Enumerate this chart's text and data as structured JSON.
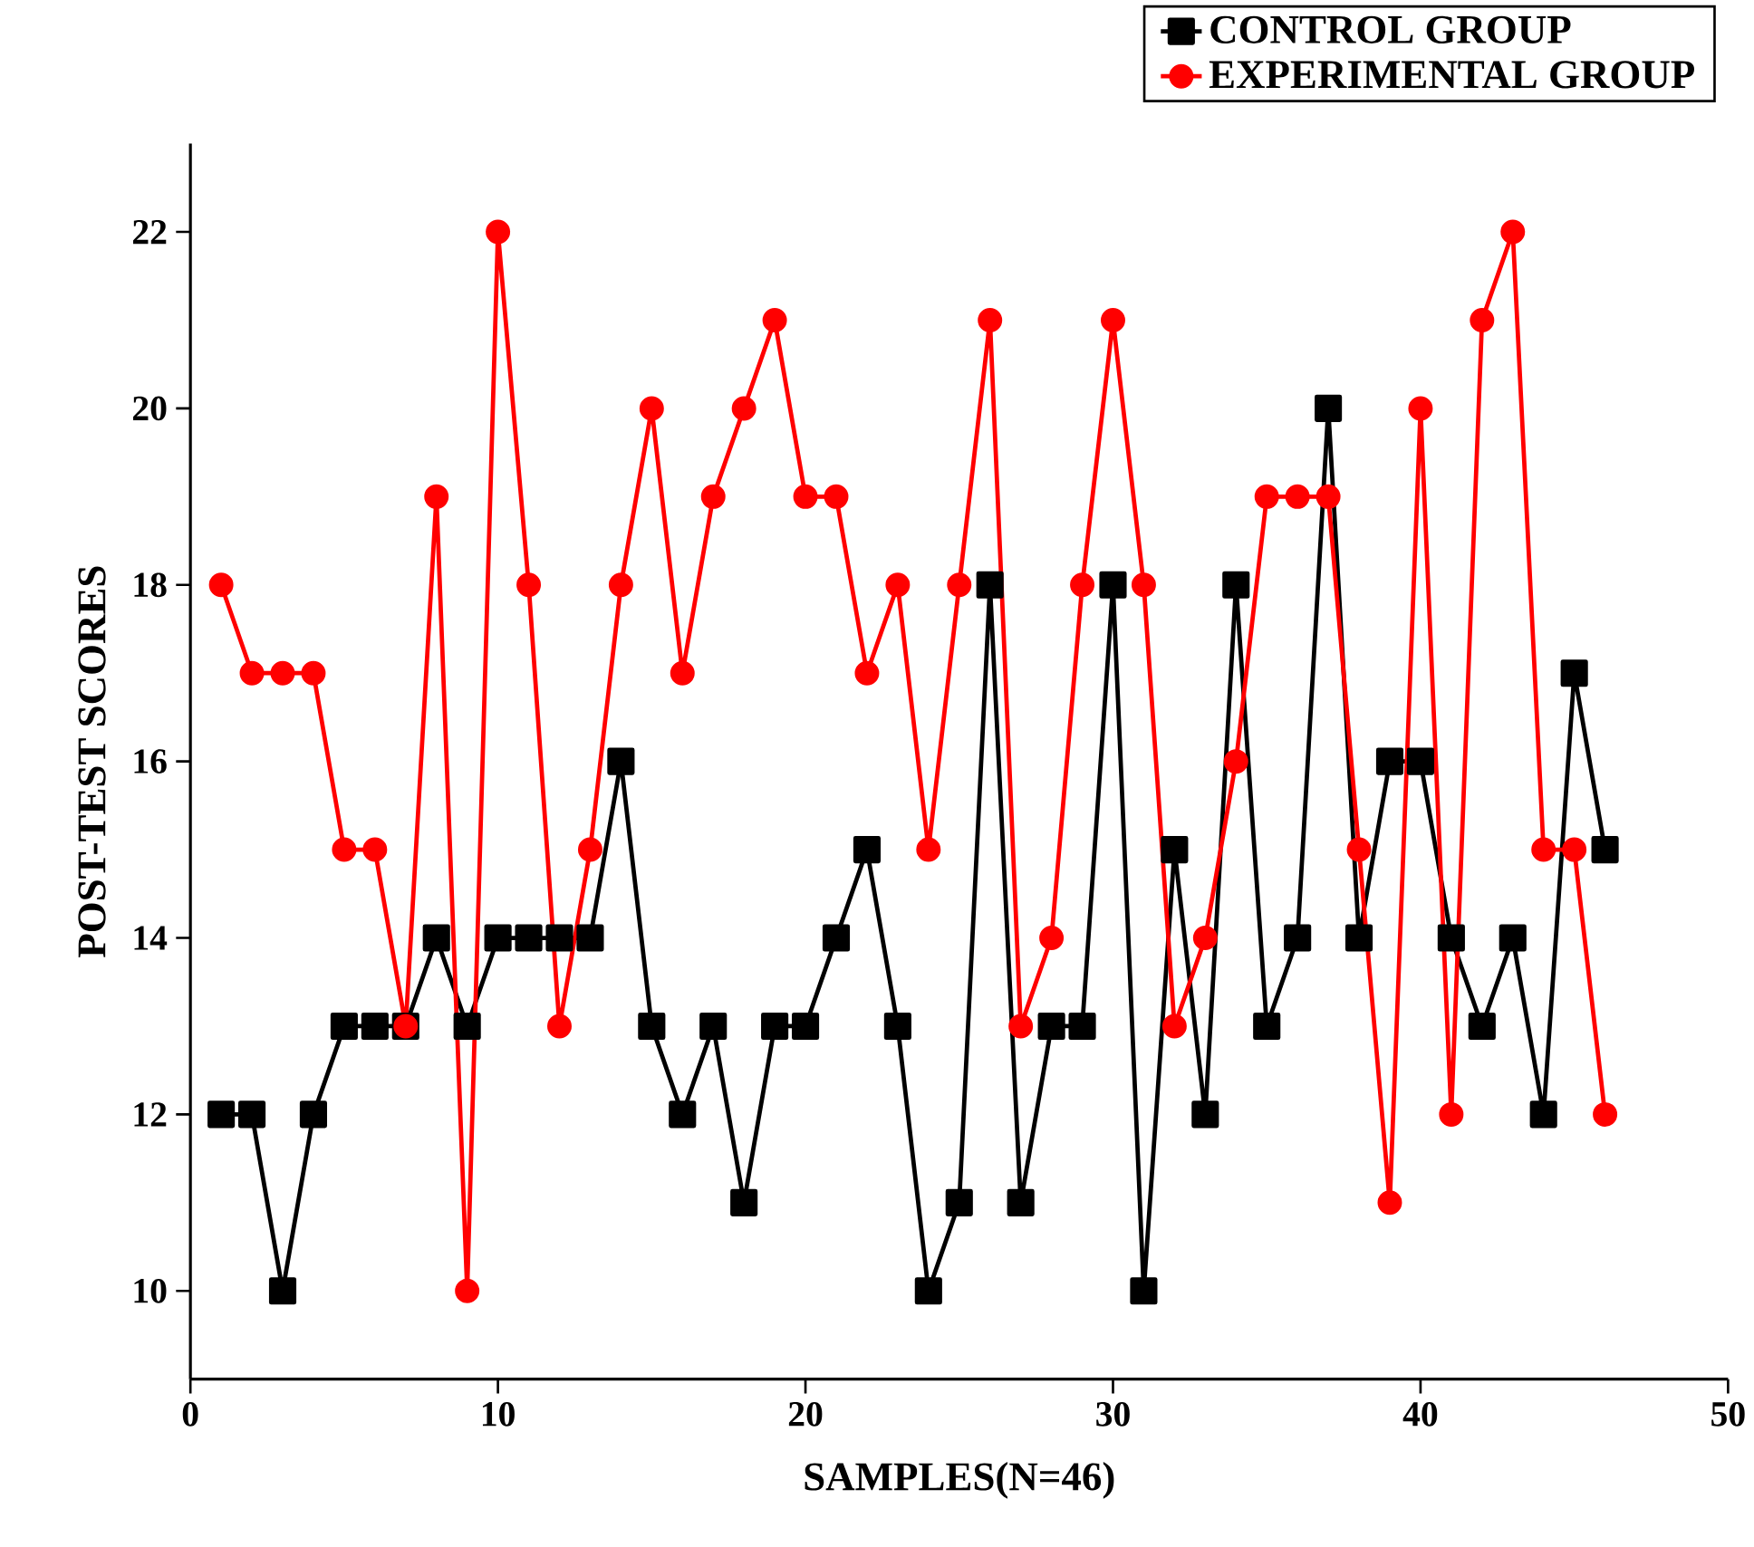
{
  "chart_data": {
    "type": "line",
    "xlabel": "SAMPLES(N=46)",
    "ylabel": "POST-TEST SCORES",
    "x": [
      1,
      2,
      3,
      4,
      5,
      6,
      7,
      8,
      9,
      10,
      11,
      12,
      13,
      14,
      15,
      16,
      17,
      18,
      19,
      20,
      21,
      22,
      23,
      24,
      25,
      26,
      27,
      28,
      29,
      30,
      31,
      32,
      33,
      34,
      35,
      36,
      37,
      38,
      39,
      40,
      41,
      42,
      43,
      44,
      45,
      46
    ],
    "series": [
      {
        "name": "CONTROL GROUP",
        "color": "#000000",
        "marker": "square",
        "values": [
          12,
          12,
          10,
          12,
          13,
          13,
          13,
          14,
          13,
          14,
          14,
          14,
          14,
          16,
          13,
          12,
          13,
          11,
          13,
          13,
          14,
          15,
          13,
          10,
          11,
          18,
          11,
          13,
          13,
          18,
          10,
          15,
          12,
          18,
          13,
          14,
          20,
          14,
          16,
          16,
          14,
          13,
          14,
          12,
          17,
          15
        ]
      },
      {
        "name": "EXPERIMENTAL GROUP",
        "color": "#ff0000",
        "marker": "circle",
        "values": [
          18,
          17,
          17,
          17,
          15,
          15,
          13,
          19,
          10,
          22,
          18,
          13,
          15,
          18,
          20,
          17,
          19,
          20,
          21,
          19,
          19,
          17,
          18,
          15,
          18,
          21,
          13,
          14,
          18,
          21,
          18,
          13,
          14,
          16,
          19,
          19,
          19,
          15,
          11,
          20,
          12,
          21,
          22,
          15,
          15,
          12
        ]
      }
    ],
    "xlim": [
      0,
      50
    ],
    "xticks": [
      0,
      10,
      20,
      30,
      40,
      50
    ],
    "ylim": [
      9,
      23
    ],
    "yticks": [
      10,
      12,
      14,
      16,
      18,
      20,
      22
    ],
    "legend": "top right",
    "line_style": "solid",
    "grid": false
  }
}
